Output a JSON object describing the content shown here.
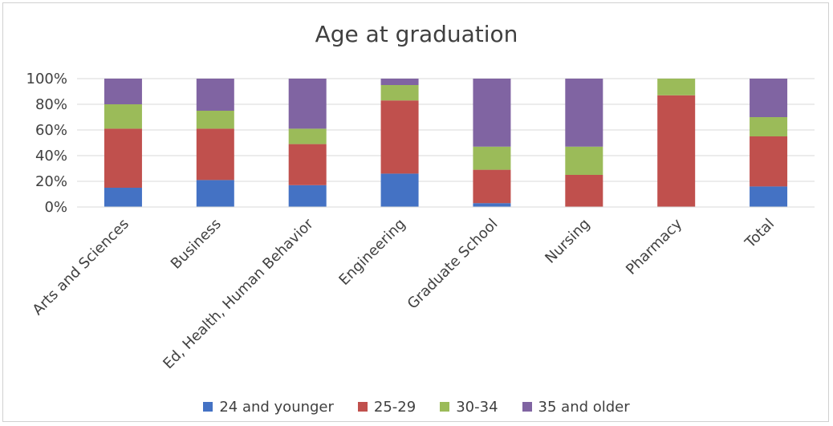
{
  "chart_data": {
    "type": "bar",
    "stacked": true,
    "title": "Age at graduation",
    "categories": [
      "Arts and Sciences",
      "Business",
      "Ed, Health, Human Behavior",
      "Engineering",
      "Graduate School",
      "Nursing",
      "Pharmacy",
      "Total"
    ],
    "series": [
      {
        "name": "24 and younger",
        "color": "#4472C4",
        "values": [
          15,
          21,
          17,
          26,
          3,
          0,
          0,
          16
        ]
      },
      {
        "name": "25-29",
        "color": "#C0504D",
        "values": [
          46,
          40,
          32,
          57,
          26,
          25,
          87,
          39
        ]
      },
      {
        "name": "30-34",
        "color": "#9BBB59",
        "values": [
          19,
          14,
          12,
          12,
          18,
          22,
          13,
          15
        ]
      },
      {
        "name": "35 and older",
        "color": "#8064A2",
        "values": [
          20,
          25,
          39,
          5,
          53,
          53,
          0,
          30
        ]
      }
    ],
    "ylim": [
      0,
      100
    ],
    "yticks": [
      "0%",
      "20%",
      "40%",
      "60%",
      "80%",
      "100%"
    ],
    "grid": true,
    "legend_position": "bottom"
  }
}
